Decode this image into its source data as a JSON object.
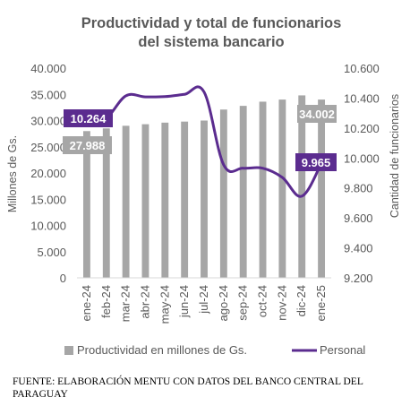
{
  "chart_data": {
    "type": "bar+line",
    "title_lines": [
      "Productividad y total de funcionarios",
      "del sistema bancario"
    ],
    "categories": [
      "ene-24",
      "feb-24",
      "mar-24",
      "abr-24",
      "may-24",
      "jun-24",
      "jul-24",
      "ago-24",
      "sep-24",
      "oct-24",
      "nov-24",
      "dic-24",
      "ene-25"
    ],
    "series": [
      {
        "name": "Productividad en millones de Gs.",
        "type": "bar",
        "axis": "left",
        "color": "#a6a6a6",
        "values": [
          27988,
          28500,
          29000,
          29300,
          29600,
          29800,
          30000,
          32100,
          32800,
          33600,
          34000,
          34800,
          34002
        ]
      },
      {
        "name": "Personal",
        "type": "line",
        "axis": "right",
        "color": "#5b2c8f",
        "values": [
          10264,
          10270,
          10415,
          10408,
          10410,
          10425,
          10440,
          9955,
          9932,
          9932,
          9870,
          9745,
          9965
        ]
      }
    ],
    "y_left": {
      "label": "Millones de Gs.",
      "range": [
        0,
        40000
      ],
      "ticks": [
        "0",
        "5.000",
        "10.000",
        "15.000",
        "20.000",
        "25.000",
        "30.000",
        "35.000",
        "40.000"
      ]
    },
    "y_right": {
      "label": "Cantidad de funcionarios",
      "range": [
        9200,
        10600
      ],
      "ticks": [
        "9.200",
        "9.400",
        "9.600",
        "9.800",
        "10.000",
        "10.200",
        "10.400",
        "10.600"
      ]
    },
    "callouts": [
      {
        "text": "10.264",
        "series": "Personal",
        "index": 0
      },
      {
        "text": "27.988",
        "series": "Productividad en millones de Gs.",
        "index": 0
      },
      {
        "text": "34.002",
        "series": "Productividad en millones de Gs.",
        "index": 12
      },
      {
        "text": "9.965",
        "series": "Personal",
        "index": 12
      }
    ],
    "legend_position": "bottom",
    "grid": false
  },
  "source_note": "FUENTE: ELABORACIÓN MENTU CON DATOS DEL BANCO CENTRAL DEL PARAGUAY"
}
